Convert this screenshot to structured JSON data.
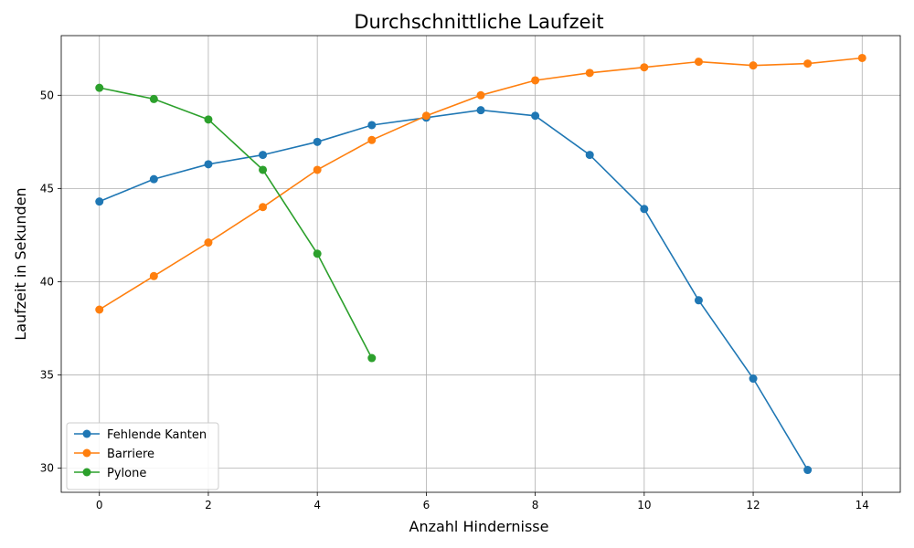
{
  "chart_data": {
    "type": "line",
    "title": "Durchschnittliche Laufzeit",
    "xlabel": "Anzahl Hindernisse",
    "ylabel": "Laufzeit in Sekunden",
    "xlim": [
      -0.7,
      14.7
    ],
    "ylim": [
      28.7,
      53.2
    ],
    "x_ticks": [
      0,
      2,
      4,
      6,
      8,
      10,
      12,
      14
    ],
    "y_ticks": [
      30,
      35,
      40,
      45,
      50
    ],
    "grid": true,
    "legend_position": "lower-left",
    "series": [
      {
        "name": "Fehlende Kanten",
        "color": "#1f77b4",
        "x": [
          0,
          1,
          2,
          3,
          4,
          5,
          6,
          7,
          8,
          9,
          10,
          11,
          12,
          13
        ],
        "y": [
          44.3,
          45.5,
          46.3,
          46.8,
          47.5,
          48.4,
          48.8,
          49.2,
          48.9,
          46.8,
          43.9,
          39.0,
          34.8,
          29.9
        ]
      },
      {
        "name": "Barriere",
        "color": "#ff7f0e",
        "x": [
          0,
          1,
          2,
          3,
          4,
          5,
          6,
          7,
          8,
          9,
          10,
          11,
          12,
          13,
          14
        ],
        "y": [
          38.5,
          40.3,
          42.1,
          44.0,
          46.0,
          47.6,
          48.9,
          50.0,
          50.8,
          51.2,
          51.5,
          51.8,
          51.6,
          51.7,
          52.0
        ]
      },
      {
        "name": "Pylone",
        "color": "#2ca02c",
        "x": [
          0,
          1,
          2,
          3,
          4,
          5
        ],
        "y": [
          50.4,
          49.8,
          48.7,
          46.0,
          41.5,
          35.9
        ]
      }
    ]
  }
}
